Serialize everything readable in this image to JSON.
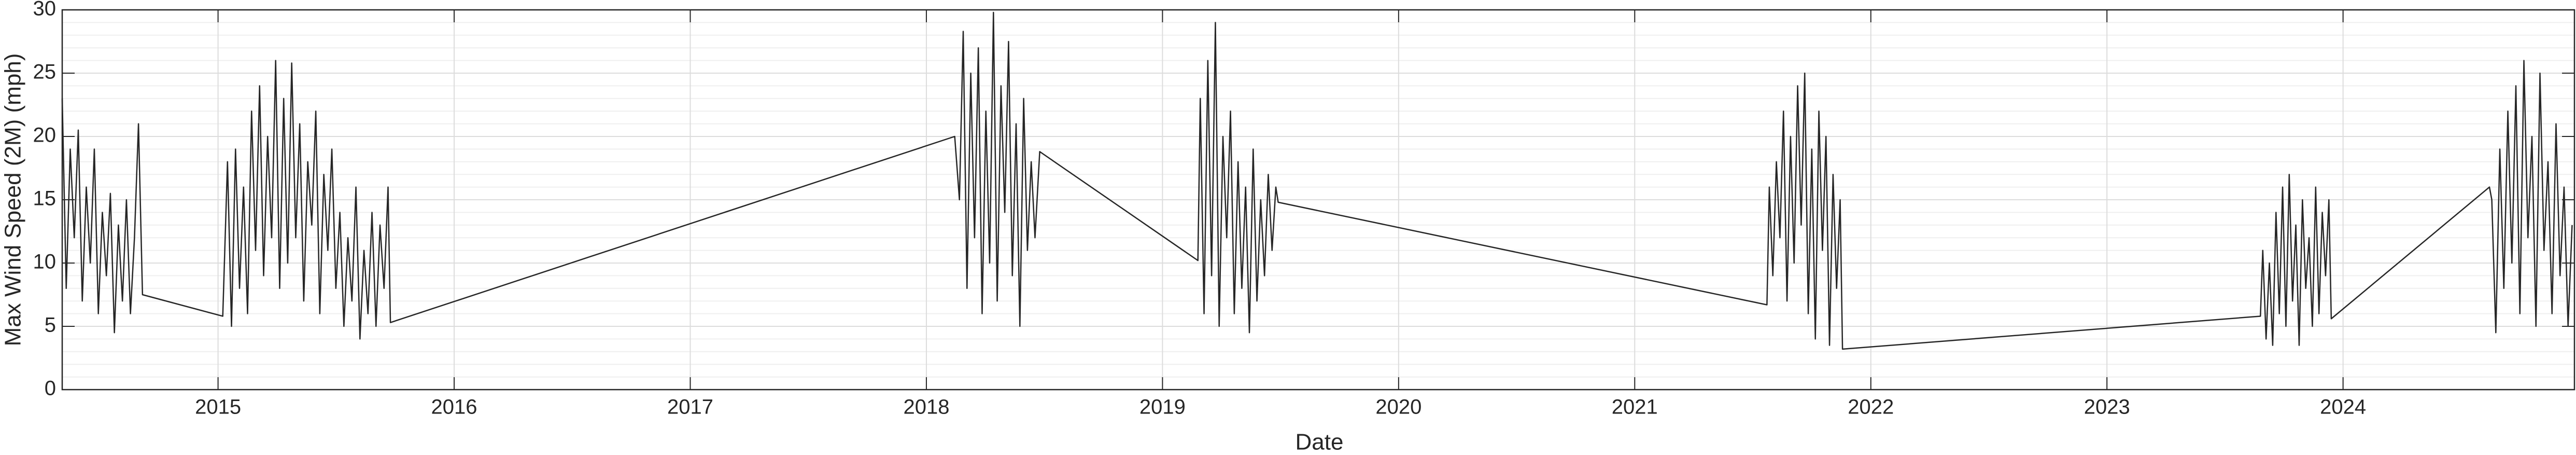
{
  "chart_data": {
    "type": "line",
    "xlabel": "Date",
    "ylabel": "Max Wind Speed (2M) (mph)",
    "xlim": [
      2014.34,
      2024.98
    ],
    "xticks": [
      2015,
      2016,
      2017,
      2018,
      2019,
      2020,
      2021,
      2022,
      2023,
      2024
    ],
    "ylim": [
      0,
      30
    ],
    "yticks": [
      0,
      5,
      10,
      15,
      20,
      25,
      30
    ],
    "grid": true,
    "minor_grid": true,
    "series": [
      {
        "color": "#262626",
        "x": [
          2014.34,
          2014.357,
          2014.374,
          2014.391,
          2014.408,
          2014.425,
          2014.442,
          2014.459,
          2014.476,
          2014.493,
          2014.51,
          2014.527,
          2014.544,
          2014.561,
          2014.578,
          2014.595,
          2014.612,
          2014.629,
          2014.646,
          2014.663,
          2014.68,
          2015.02,
          2015.04,
          2015.057,
          2015.074,
          2015.091,
          2015.108,
          2015.125,
          2015.142,
          2015.159,
          2015.176,
          2015.193,
          2015.21,
          2015.227,
          2015.244,
          2015.261,
          2015.278,
          2015.295,
          2015.312,
          2015.329,
          2015.346,
          2015.363,
          2015.38,
          2015.397,
          2015.414,
          2015.431,
          2015.448,
          2015.465,
          2015.482,
          2015.499,
          2015.516,
          2015.533,
          2015.55,
          2015.567,
          2015.584,
          2015.601,
          2015.618,
          2015.635,
          2015.652,
          2015.669,
          2015.686,
          2015.703,
          2015.72,
          2015.73,
          2018.12,
          2018.14,
          2018.156,
          2018.172,
          2018.188,
          2018.204,
          2018.22,
          2018.236,
          2018.252,
          2018.268,
          2018.284,
          2018.3,
          2018.316,
          2018.332,
          2018.348,
          2018.364,
          2018.38,
          2018.396,
          2018.412,
          2018.428,
          2018.444,
          2018.46,
          2018.48,
          2019.15,
          2019.16,
          2019.176,
          2019.192,
          2019.208,
          2019.224,
          2019.24,
          2019.256,
          2019.272,
          2019.288,
          2019.304,
          2019.32,
          2019.336,
          2019.352,
          2019.368,
          2019.384,
          2019.4,
          2019.416,
          2019.432,
          2019.448,
          2019.464,
          2019.48,
          2019.49,
          2021.56,
          2021.57,
          2021.585,
          2021.6,
          2021.615,
          2021.63,
          2021.645,
          2021.66,
          2021.675,
          2021.69,
          2021.705,
          2021.72,
          2021.735,
          2021.75,
          2021.765,
          2021.78,
          2021.795,
          2021.81,
          2021.825,
          2021.84,
          2021.855,
          2021.87,
          2021.88,
          2023.65,
          2023.66,
          2023.674,
          2023.688,
          2023.702,
          2023.716,
          2023.73,
          2023.744,
          2023.758,
          2023.772,
          2023.786,
          2023.8,
          2023.814,
          2023.828,
          2023.842,
          2023.856,
          2023.87,
          2023.884,
          2023.898,
          2023.912,
          2023.926,
          2023.94,
          2023.95,
          2024.62,
          2024.63,
          2024.647,
          2024.664,
          2024.681,
          2024.698,
          2024.715,
          2024.732,
          2024.749,
          2024.766,
          2024.783,
          2024.8,
          2024.817,
          2024.834,
          2024.851,
          2024.868,
          2024.885,
          2024.902,
          2024.919,
          2024.936,
          2024.953,
          2024.97
        ],
        "values": [
          23,
          8,
          19,
          12,
          20.5,
          7,
          16,
          10,
          19,
          6,
          14,
          9,
          15.5,
          4.5,
          13,
          7,
          15,
          6,
          12,
          21,
          7.5,
          5.8,
          18,
          5,
          19,
          8,
          16,
          6,
          22,
          11,
          24,
          9,
          20,
          12,
          26,
          8,
          23,
          10,
          25.8,
          12,
          21,
          7,
          18,
          13,
          22,
          6,
          17,
          11,
          19,
          8,
          14,
          5,
          12,
          7,
          16,
          4,
          11,
          6,
          14,
          5,
          13,
          8,
          16,
          5.3,
          20,
          15,
          28.3,
          8,
          25,
          12,
          27,
          6,
          22,
          10,
          29.8,
          7,
          24,
          14,
          27.5,
          9,
          21,
          5,
          23,
          11,
          18,
          12,
          18.8,
          10.2,
          23,
          6,
          26,
          9,
          29,
          5,
          20,
          12,
          22,
          6,
          18,
          8,
          16,
          4.5,
          19,
          7,
          15,
          9,
          17,
          11,
          16,
          14.8,
          6.7,
          16,
          9,
          18,
          12,
          22,
          7,
          20,
          10,
          24,
          13,
          25,
          6,
          19,
          4,
          22,
          11,
          20,
          3.5,
          17,
          8,
          15,
          3.2,
          5.8,
          11,
          4,
          10,
          3.5,
          14,
          6,
          16,
          5,
          17,
          7,
          13,
          3.5,
          15,
          8,
          12,
          5,
          16,
          6,
          14,
          9,
          15,
          5.6,
          16,
          15,
          4.5,
          19,
          8,
          22,
          10,
          24,
          6,
          26,
          12,
          20,
          5,
          25,
          11,
          18,
          6,
          21,
          9,
          16,
          5,
          13
        ]
      }
    ]
  }
}
